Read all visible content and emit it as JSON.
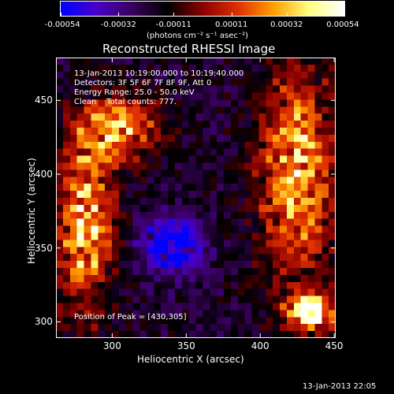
{
  "colorbar": {
    "tick_labels": [
      "-0.00054",
      "-0.00032",
      "-0.00011",
      "0.00011",
      "0.00032",
      "0.00054"
    ],
    "tick_values": [
      -0.00054,
      -0.00032,
      -0.00011,
      0.00011,
      0.00032,
      0.00054
    ],
    "range": [
      -0.00054,
      0.00054
    ],
    "unit_label": "(photons cm⁻² s⁻¹ asec⁻²)",
    "colors": [
      "#0000ff",
      "#4a00c8",
      "#3a0060",
      "#000000",
      "#8a0000",
      "#e03000",
      "#ffa000",
      "#ffff80",
      "#ffffff"
    ]
  },
  "chart_data": {
    "type": "heatmap",
    "title": "Reconstructed RHESSI Image",
    "xlabel": "Heliocentric X (arcsec)",
    "ylabel": "Heliocentric Y (arcsec)",
    "xlim": [
      262,
      451
    ],
    "ylim": [
      289,
      479
    ],
    "xticks": [
      300,
      350,
      400,
      450
    ],
    "yticks": [
      300,
      350,
      400,
      450
    ],
    "grid": false,
    "annotations": {
      "time_range": "13-Jan-2013 10:19:00.000 to 10:19:40.000",
      "detectors": "Detectors: 3F 5F 6F 7F 8F 9F, Att 0",
      "energy": "Energy Range: 25.0 - 50.0 keV",
      "clean": "Clean    Total counts: 777.",
      "peak": "Position of Peak = [430,305]"
    },
    "peak_position": [
      430,
      305
    ],
    "regions": [
      {
        "desc": "bright ridge left",
        "x": [
          262,
          300
        ],
        "y": [
          300,
          430
        ],
        "level": "high"
      },
      {
        "desc": "bright blob top-left",
        "x": [
          280,
          330
        ],
        "y": [
          410,
          450
        ],
        "level": "high"
      },
      {
        "desc": "bright ridge right",
        "x": [
          400,
          451
        ],
        "y": [
          320,
          480
        ],
        "level": "high"
      },
      {
        "desc": "bright peak bottom-right",
        "x": [
          420,
          451
        ],
        "y": [
          298,
          315
        ],
        "level": "max"
      },
      {
        "desc": "negative center",
        "x": [
          320,
          360
        ],
        "y": [
          335,
          370
        ],
        "level": "min"
      }
    ]
  },
  "footer": {
    "timestamp": "13-Jan-2013 22:05"
  }
}
